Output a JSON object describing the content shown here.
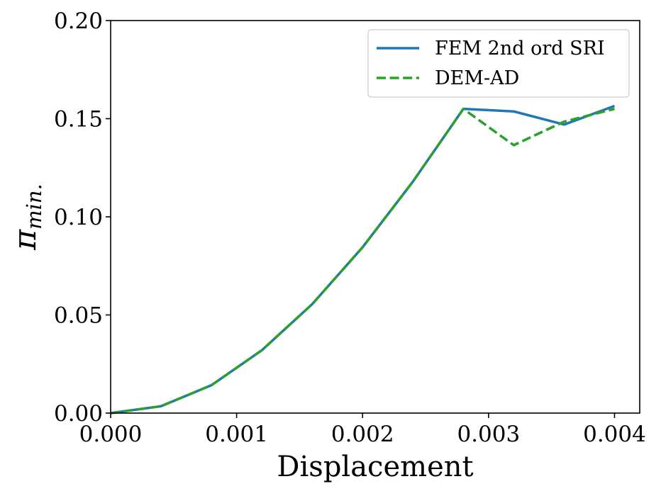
{
  "chart_data": {
    "type": "line",
    "xlabel": "Displacement",
    "ylabel": "π_min.",
    "ylabel_main": "π",
    "ylabel_sub": "min.",
    "xlim": [
      0.0,
      0.0042
    ],
    "ylim": [
      0.0,
      0.2
    ],
    "xticks": [
      0.0,
      0.001,
      0.002,
      0.003,
      0.004
    ],
    "xtick_labels": [
      "0.000",
      "0.001",
      "0.002",
      "0.003",
      "0.004"
    ],
    "yticks": [
      0.0,
      0.05,
      0.1,
      0.15,
      0.2
    ],
    "ytick_labels": [
      "0.00",
      "0.05",
      "0.10",
      "0.15",
      "0.20"
    ],
    "grid": false,
    "legend_position": "top-right",
    "series": [
      {
        "name": "FEM 2nd ord SRI",
        "color": "#1f77b4",
        "style": "solid",
        "x": [
          0.0,
          0.0004,
          0.0008,
          0.0012,
          0.0016,
          0.002,
          0.0024,
          0.0028,
          0.0032,
          0.0036,
          0.004
        ],
        "y": [
          0.0,
          0.0035,
          0.0142,
          0.032,
          0.0555,
          0.0845,
          0.118,
          0.155,
          0.1537,
          0.147,
          0.1565
        ]
      },
      {
        "name": "DEM-AD",
        "color": "#2ca02c",
        "style": "dashed",
        "x": [
          0.0,
          0.0004,
          0.0008,
          0.0012,
          0.0016,
          0.002,
          0.0024,
          0.0028,
          0.0032,
          0.0036,
          0.004
        ],
        "y": [
          0.0,
          0.0035,
          0.0142,
          0.032,
          0.0555,
          0.0845,
          0.118,
          0.155,
          0.1365,
          0.1485,
          0.155
        ]
      }
    ]
  }
}
